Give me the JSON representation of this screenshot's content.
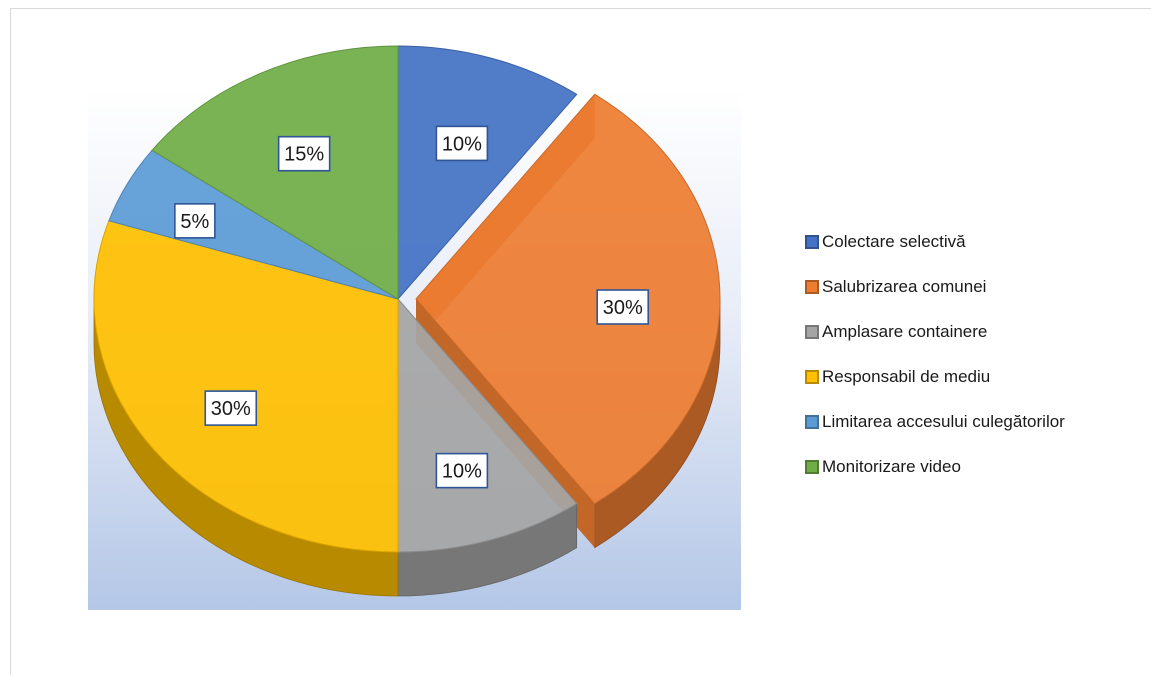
{
  "chart_data": {
    "type": "pie",
    "title": "",
    "variant": "3d-exploded",
    "legend_position": "right",
    "categories": [
      "Colectare selectivă",
      "Salubrizarea comunei",
      "Amplasare containere",
      "Responsabil de mediu",
      "Limitarea accesului culegătorilor",
      "Monitorizare video"
    ],
    "values": [
      10,
      30,
      10,
      30,
      5,
      15
    ],
    "labels": [
      "10%",
      "30%",
      "10%",
      "30%",
      "5%",
      "15%"
    ],
    "colors": [
      "#4472c4",
      "#ed7d31",
      "#a5a5a5",
      "#ffc000",
      "#5b9bd5",
      "#70ad47"
    ]
  }
}
